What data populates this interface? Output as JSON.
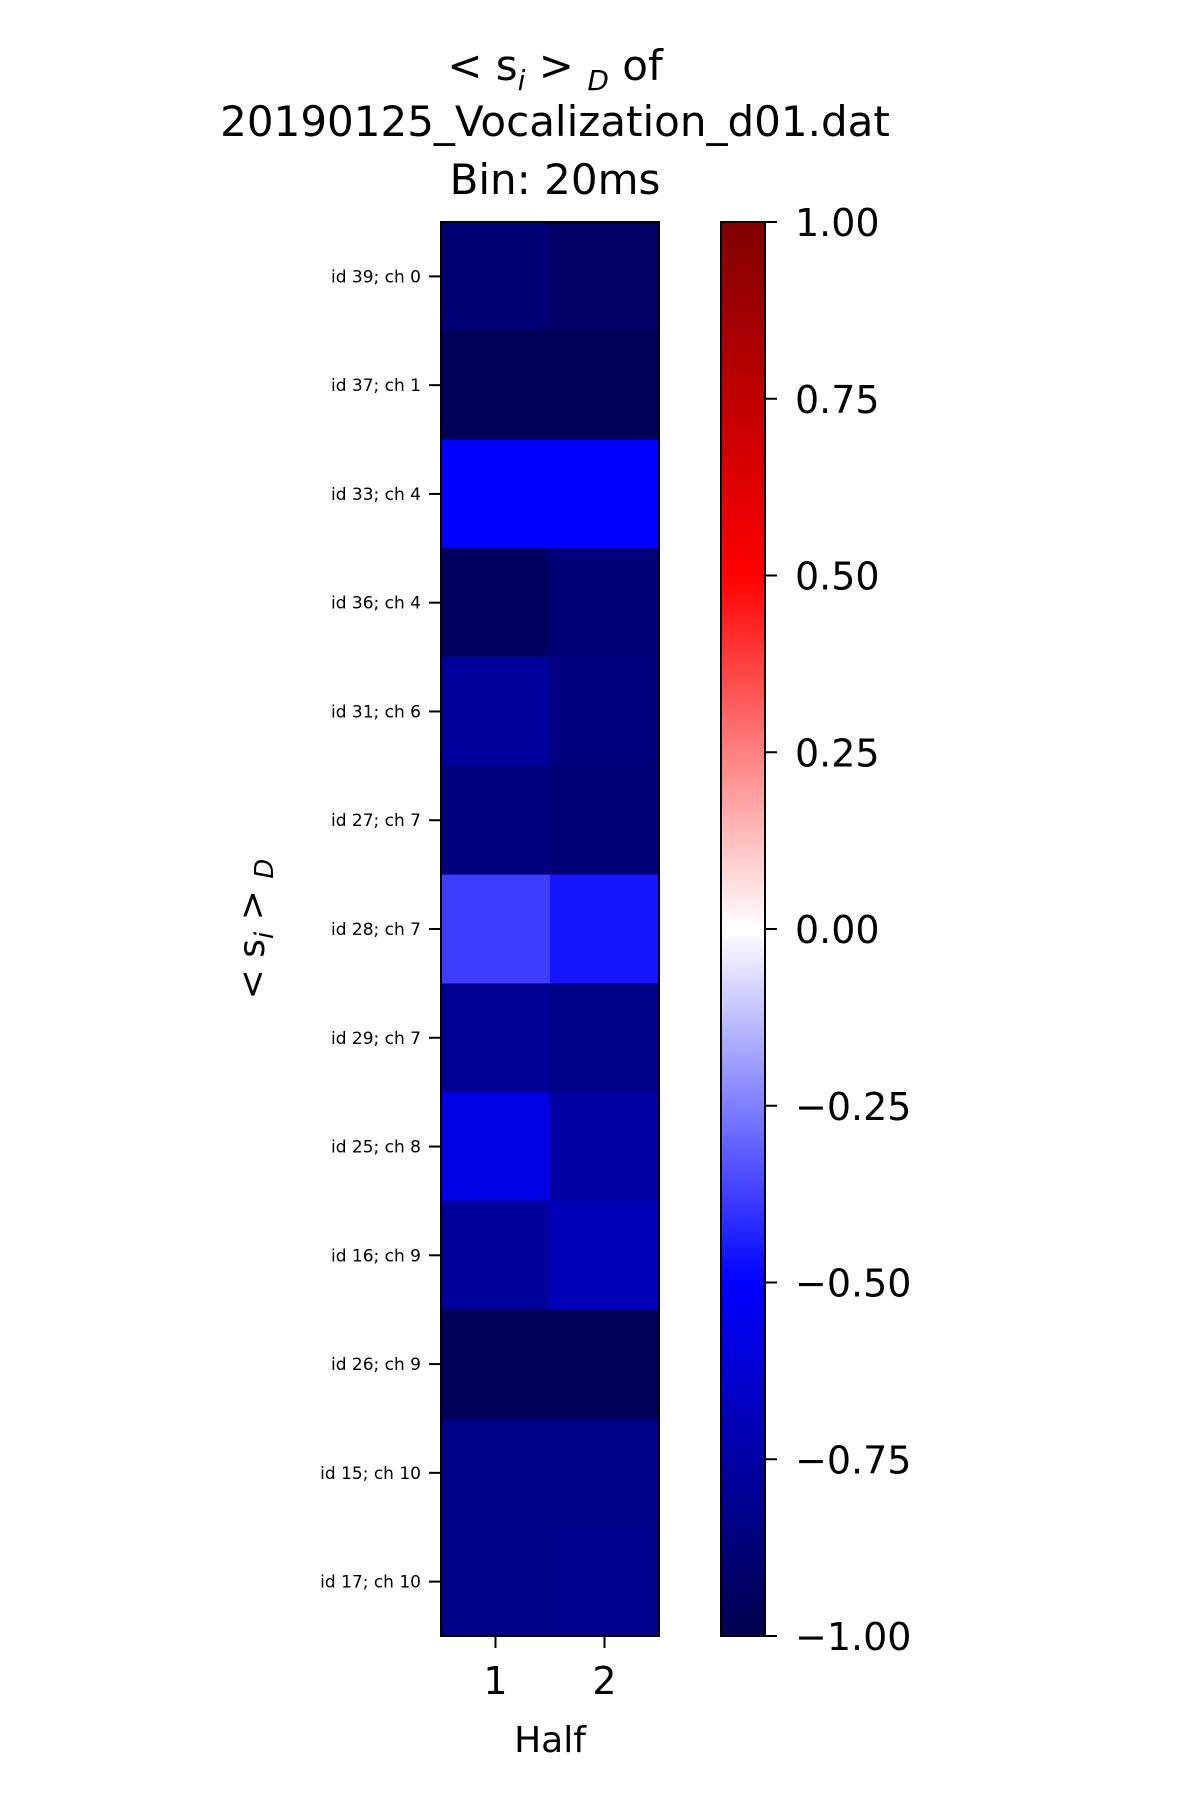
{
  "chart_data": {
    "type": "heatmap",
    "title_prefix": "< s",
    "title_sub_i": "i",
    "title_mid": " > ",
    "title_sub_D": "D",
    "title_suffix": " of",
    "title_line2": "20190125_Vocalization_d01.dat",
    "title_line3": "Bin: 20ms",
    "xlabel": "Half",
    "ylabel_prefix": "< s",
    "ylabel_sub_i": "i",
    "ylabel_mid": " > ",
    "ylabel_sub_D": "D",
    "x_categories": [
      "1",
      "2"
    ],
    "y_categories": [
      "id 39; ch 0",
      "id 37; ch 1",
      "id 33; ch 4",
      "id 36; ch 4",
      "id 31; ch 6",
      "id 27; ch 7",
      "id 28; ch 7",
      "id 29; ch 7",
      "id 25; ch 8",
      "id 16; ch 9",
      "id 26; ch 9",
      "id 15; ch 10",
      "id 17; ch 10"
    ],
    "values": [
      [
        -0.89,
        -0.93
      ],
      [
        -0.97,
        -0.97
      ],
      [
        -0.5,
        -0.5
      ],
      [
        -0.95,
        -0.88
      ],
      [
        -0.78,
        -0.86
      ],
      [
        -0.86,
        -0.88
      ],
      [
        -0.38,
        -0.46
      ],
      [
        -0.8,
        -0.84
      ],
      [
        -0.58,
        -0.76
      ],
      [
        -0.78,
        -0.7
      ],
      [
        -0.97,
        -0.97
      ],
      [
        -0.84,
        -0.84
      ],
      [
        -0.84,
        -0.82
      ]
    ],
    "colormap": "seismic",
    "vmin": -1.0,
    "vmax": 1.0,
    "colorbar_ticks": [
      "1.00",
      "0.75",
      "0.50",
      "0.25",
      "0.00",
      "−0.25",
      "−0.50",
      "−0.75",
      "−1.00"
    ],
    "colorbar_tick_values": [
      1.0,
      0.75,
      0.5,
      0.25,
      0.0,
      -0.25,
      -0.5,
      -0.75,
      -1.0
    ]
  }
}
